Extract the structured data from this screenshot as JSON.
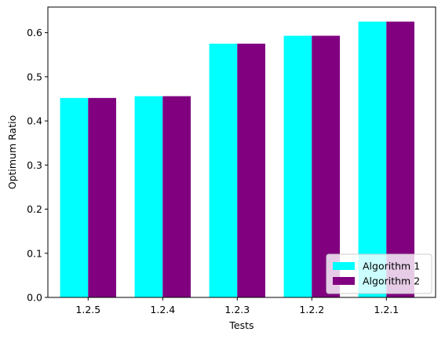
{
  "chart_data": {
    "type": "bar",
    "title": "",
    "xlabel": "Tests",
    "ylabel": "Optimum Ratio",
    "categories": [
      "1.2.5",
      "1.2.4",
      "1.2.3",
      "1.2.2",
      "1.2.1"
    ],
    "series": [
      {
        "name": "Algorithm 1",
        "color": "#00ffff",
        "values": [
          0.452,
          0.456,
          0.575,
          0.593,
          0.625
        ]
      },
      {
        "name": "Algorithm 2",
        "color": "#800080",
        "values": [
          0.452,
          0.456,
          0.575,
          0.593,
          0.625
        ]
      }
    ],
    "ylim": [
      0,
      0.658
    ],
    "yticks": [
      "0.0",
      "0.1",
      "0.2",
      "0.3",
      "0.4",
      "0.5",
      "0.6"
    ],
    "grid": false,
    "legend_position": "lower-right"
  }
}
